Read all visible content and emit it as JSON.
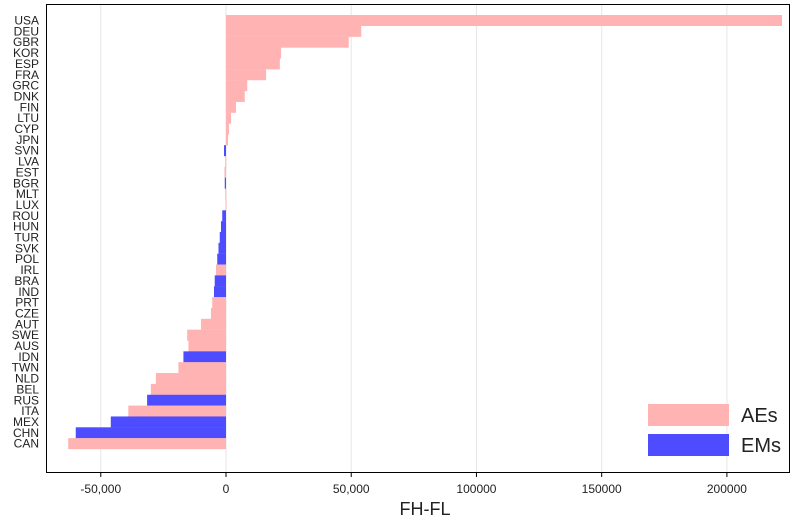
{
  "chart_data": {
    "type": "bar",
    "orientation": "horizontal",
    "categories": [
      "USA",
      "DEU",
      "GBR",
      "KOR",
      "ESP",
      "FRA",
      "GRC",
      "DNK",
      "FIN",
      "LTU",
      "CYP",
      "JPN",
      "SVN",
      "LVA",
      "EST",
      "BGR",
      "MLT",
      "LUX",
      "ROU",
      "HUN",
      "TUR",
      "SVK",
      "POL",
      "IRL",
      "BRA",
      "IND",
      "PRT",
      "CZE",
      "AUT",
      "SWE",
      "AUS",
      "IDN",
      "TWN",
      "NLD",
      "BEL",
      "RUS",
      "ITA",
      "MEX",
      "CHN",
      "CAN"
    ],
    "values": [
      222000,
      54000,
      49000,
      22000,
      21500,
      16000,
      8500,
      7500,
      4000,
      2000,
      1200,
      800,
      -800,
      -300,
      -600,
      -500,
      -300,
      -200,
      -1500,
      -2000,
      -2500,
      -3000,
      -3500,
      -4000,
      -4500,
      -4800,
      -5500,
      -6000,
      -10000,
      -15500,
      -15000,
      -17000,
      -19000,
      -28000,
      -30000,
      -31500,
      -39000,
      -46000,
      -60000,
      -63000
    ],
    "groups": [
      "AEs",
      "AEs",
      "AEs",
      "AEs",
      "AEs",
      "AEs",
      "AEs",
      "AEs",
      "AEs",
      "AEs",
      "AEs",
      "AEs",
      "EMs",
      "AEs",
      "AEs",
      "EMs",
      "AEs",
      "AEs",
      "EMs",
      "EMs",
      "EMs",
      "EMs",
      "EMs",
      "AEs",
      "EMs",
      "EMs",
      "AEs",
      "AEs",
      "AEs",
      "AEs",
      "AEs",
      "EMs",
      "AEs",
      "AEs",
      "AEs",
      "EMs",
      "AEs",
      "EMs",
      "EMs",
      "AEs"
    ],
    "xlabel": "FH-FL",
    "xlim": [
      -72000,
      225000
    ],
    "xticks": [
      -50000,
      0,
      50000,
      100000,
      150000,
      200000
    ],
    "xtick_labels": [
      "-50,000",
      "0",
      "50,000",
      "100000",
      "150000",
      "200000"
    ],
    "grid": "vertical",
    "legend": {
      "placement": "bottom-right",
      "items": [
        {
          "label": "AEs",
          "color": "#ffb3b3"
        },
        {
          "label": "EMs",
          "color": "#4d4dff"
        }
      ]
    },
    "colors": {
      "AEs": "#ffb3b3",
      "EMs": "#4d4dff"
    }
  }
}
